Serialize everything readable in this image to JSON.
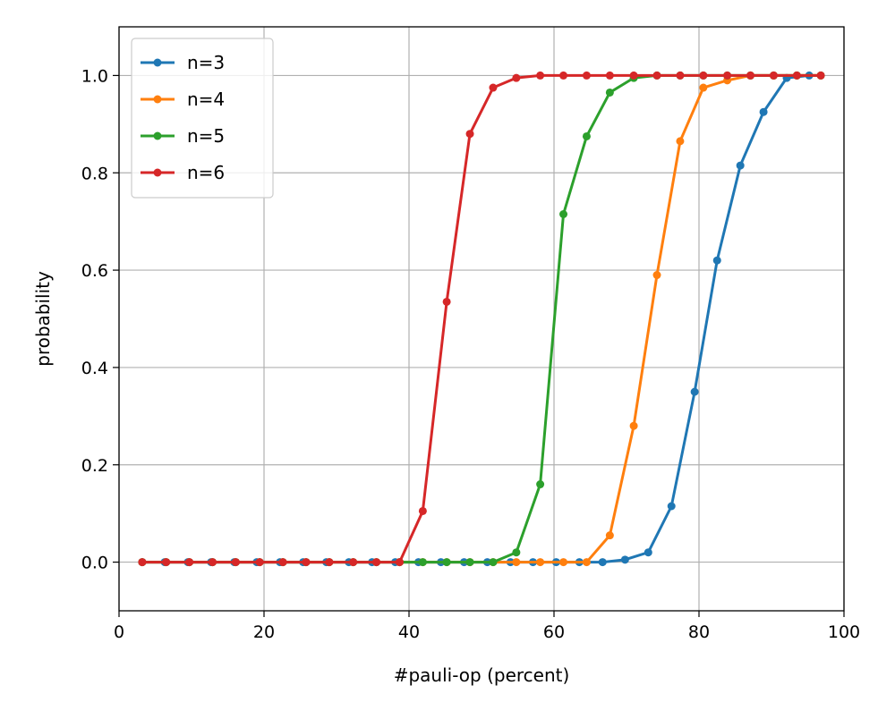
{
  "chart_data": {
    "type": "line",
    "xlabel": "#pauli-op (percent)",
    "ylabel": "probability",
    "xlim": [
      0,
      100
    ],
    "ylim": [
      -0.1,
      1.1
    ],
    "xticks": [
      0,
      20,
      40,
      60,
      80,
      100
    ],
    "yticks": [
      0.0,
      0.2,
      0.4,
      0.6,
      0.8,
      1.0
    ],
    "xtick_labels": [
      "0",
      "20",
      "40",
      "60",
      "80",
      "100"
    ],
    "ytick_labels": [
      "0.0",
      "0.2",
      "0.4",
      "0.6",
      "0.8",
      "1.0"
    ],
    "grid": true,
    "legend_position": "top-left",
    "series": [
      {
        "name": "n=3",
        "color": "#1f77b4",
        "x": [
          3.2,
          6.3,
          9.5,
          12.7,
          15.9,
          19.0,
          22.2,
          25.4,
          28.6,
          31.7,
          34.9,
          38.1,
          41.3,
          44.4,
          47.6,
          50.8,
          54.0,
          57.1,
          60.3,
          63.5,
          66.7,
          69.8,
          73.0,
          76.2,
          79.4,
          82.5,
          85.7,
          88.9,
          92.1,
          95.2
        ],
        "y": [
          0,
          0,
          0,
          0,
          0,
          0,
          0,
          0,
          0,
          0,
          0,
          0,
          0,
          0,
          0,
          0,
          0,
          0,
          0,
          0,
          0.0,
          0.005,
          0.02,
          0.115,
          0.35,
          0.62,
          0.815,
          0.925,
          0.995,
          1.0
        ]
      },
      {
        "name": "n=4",
        "color": "#ff7f0e",
        "x": [
          3.2,
          6.5,
          9.7,
          12.9,
          16.1,
          19.4,
          22.6,
          25.8,
          29.0,
          32.3,
          35.5,
          38.7,
          41.9,
          45.2,
          48.4,
          51.6,
          54.8,
          58.1,
          61.3,
          64.5,
          67.7,
          71.0,
          74.2,
          77.4,
          80.6,
          83.9,
          87.1,
          90.3,
          93.5,
          96.8
        ],
        "y": [
          0,
          0,
          0,
          0,
          0,
          0,
          0,
          0,
          0,
          0,
          0,
          0,
          0,
          0,
          0,
          0,
          0,
          0,
          0,
          0,
          0.055,
          0.28,
          0.59,
          0.865,
          0.975,
          0.99,
          1.0,
          1.0,
          1.0,
          1.0
        ]
      },
      {
        "name": "n=5",
        "color": "#2ca02c",
        "x": [
          3.2,
          6.5,
          9.7,
          12.9,
          16.1,
          19.4,
          22.6,
          25.8,
          29.0,
          32.3,
          35.5,
          38.7,
          41.9,
          45.2,
          48.4,
          51.6,
          54.8,
          58.1,
          61.3,
          64.5,
          67.7,
          71.0,
          74.2,
          77.4,
          80.6,
          83.9,
          87.1,
          90.3,
          93.5,
          96.8
        ],
        "y": [
          0,
          0,
          0,
          0,
          0,
          0,
          0,
          0,
          0,
          0,
          0,
          0,
          0,
          0,
          0,
          0,
          0.02,
          0.16,
          0.715,
          0.875,
          0.965,
          0.995,
          1.0,
          1.0,
          1.0,
          1.0,
          1.0,
          1.0,
          1.0,
          1.0
        ]
      },
      {
        "name": "n=6",
        "color": "#d62728",
        "x": [
          3.2,
          6.5,
          9.7,
          12.9,
          16.1,
          19.4,
          22.6,
          25.8,
          29.0,
          32.3,
          35.5,
          38.7,
          41.9,
          45.2,
          48.4,
          51.6,
          54.8,
          58.1,
          61.3,
          64.5,
          67.7,
          71.0,
          74.2,
          77.4,
          80.6,
          83.9,
          87.1,
          90.3,
          93.5,
          96.8
        ],
        "y": [
          0,
          0,
          0,
          0,
          0,
          0,
          0,
          0,
          0,
          0,
          0,
          0,
          0.105,
          0.535,
          0.88,
          0.975,
          0.995,
          1.0,
          1.0,
          1.0,
          1.0,
          1.0,
          1.0,
          1.0,
          1.0,
          1.0,
          1.0,
          1.0,
          1.0,
          1.0
        ]
      }
    ]
  }
}
